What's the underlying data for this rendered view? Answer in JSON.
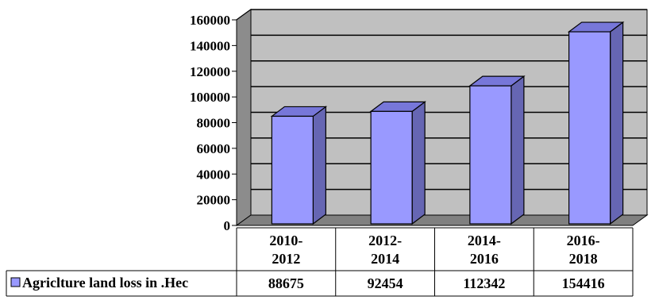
{
  "chart_data": {
    "type": "bar",
    "categories": [
      [
        "2010-",
        "2012"
      ],
      [
        "2012-",
        "2014"
      ],
      [
        "2014-",
        "2016"
      ],
      [
        "2016-",
        "2018"
      ]
    ],
    "series": [
      {
        "name": "Agriclture land loss in .Hec",
        "values": [
          88675,
          92454,
          112342,
          154416
        ],
        "color": "#9999FF",
        "side_color": "#6666B3",
        "top_color": "#7777D9"
      }
    ],
    "ylim": [
      0,
      160000
    ],
    "y_ticks": [
      0,
      20000,
      40000,
      60000,
      80000,
      100000,
      120000,
      140000,
      160000
    ],
    "grid": true,
    "legend": "data-table",
    "wall_color": "#C0C0C0",
    "floor_color": "#808080"
  }
}
